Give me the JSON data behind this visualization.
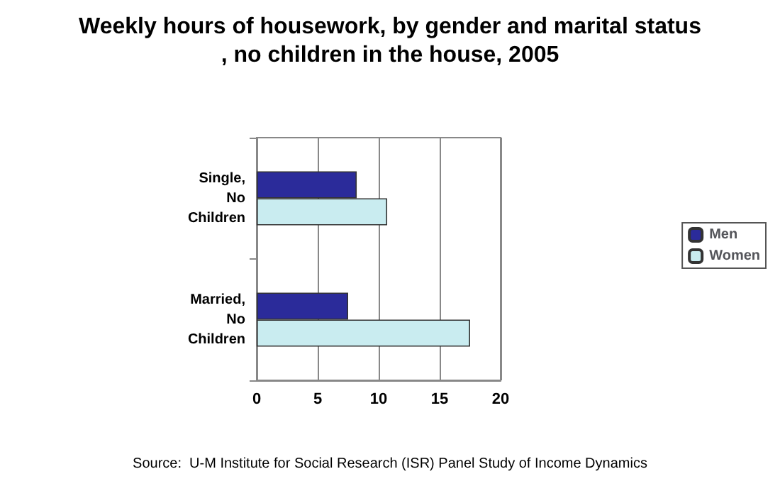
{
  "chart_data": {
    "type": "bar",
    "orientation": "horizontal",
    "title": "Weekly hours of housework, by gender and marital status, no children in the house, 2005",
    "categories": [
      "Single, No Children",
      "Married, No Children"
    ],
    "series": [
      {
        "name": "Men",
        "color": "#2b2b9a",
        "values": [
          8.2,
          7.5
        ]
      },
      {
        "name": "Women",
        "color": "#c9ecf0",
        "values": [
          10.7,
          17.5
        ]
      }
    ],
    "xlim": [
      0,
      20
    ],
    "xticks": [
      0,
      5,
      10,
      15,
      20
    ],
    "grid": "x",
    "legend": "right",
    "annotations": [
      "Source:  U-M Institute for Social Research (ISR) Panel Study of Income Dynamics"
    ]
  }
}
